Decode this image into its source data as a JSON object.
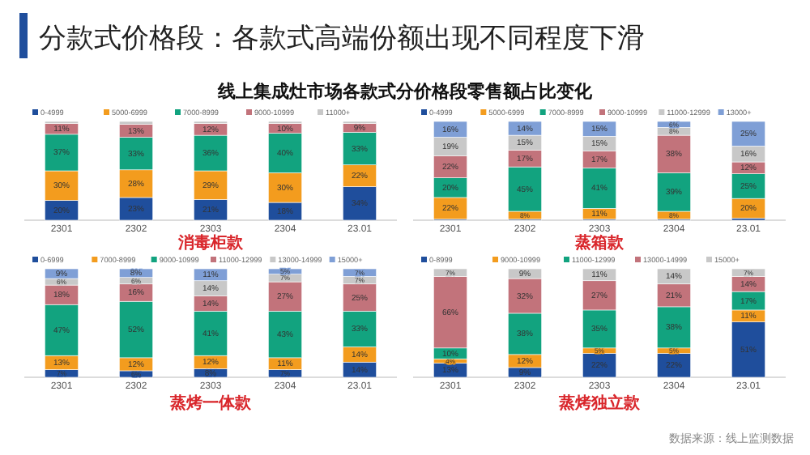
{
  "chart_data": [
    {
      "type": "bar",
      "stacked": true,
      "legend": "top",
      "title": "分款式价格段：各款式高端份额出现不同程度下滑",
      "subtitle": "线上集成灶市场各款式分价格段零售额占比变化",
      "xlabel": "消毒柜款",
      "categories": [
        "2301",
        "2302",
        "2303",
        "2304",
        "23.01"
      ],
      "series": [
        {
          "name": "0-4999",
          "color": "#1f4e9c",
          "values": [
            20,
            23,
            21,
            18,
            34
          ],
          "value_labels": [
            "20%",
            "23%",
            "21%",
            "18%",
            "34%"
          ]
        },
        {
          "name": "5000-6999",
          "color": "#f39c1e",
          "values": [
            30,
            28,
            29,
            30,
            22
          ],
          "value_labels": [
            "30%",
            "28%",
            "29%",
            "30%",
            "22%"
          ]
        },
        {
          "name": "7000-8999",
          "color": "#12a37f",
          "values": [
            37,
            33,
            36,
            40,
            33
          ],
          "value_labels": [
            "37%",
            "33%",
            "36%",
            "40%",
            "33%"
          ]
        },
        {
          "name": "9000-10999",
          "color": "#c2737b",
          "values": [
            11,
            13,
            12,
            10,
            9
          ],
          "value_labels": [
            "11%",
            "13%",
            "12%",
            "10%",
            "9%"
          ]
        },
        {
          "name": "11000+",
          "color": "#c8c8c8",
          "values": [
            2,
            3,
            2,
            2,
            2
          ],
          "value_labels": [
            null,
            null,
            null,
            null,
            null
          ]
        }
      ]
    },
    {
      "type": "bar",
      "stacked": true,
      "legend": "top",
      "xlabel": "蒸箱款",
      "categories": [
        "2301",
        "2302",
        "2303",
        "2304",
        "23.01"
      ],
      "series": [
        {
          "name": "0-4999",
          "color": "#1f4e9c",
          "values": [
            1,
            1,
            1,
            1,
            2
          ],
          "value_labels": [
            null,
            null,
            null,
            null,
            null
          ]
        },
        {
          "name": "5000-6999",
          "color": "#f39c1e",
          "values": [
            22,
            8,
            11,
            8,
            20
          ],
          "value_labels": [
            "22%",
            "8%",
            "11%",
            "8%",
            "20%"
          ]
        },
        {
          "name": "7000-8999",
          "color": "#12a37f",
          "values": [
            20,
            45,
            41,
            39,
            25
          ],
          "value_labels": [
            "20%",
            "45%",
            "41%",
            "39%",
            "25%"
          ]
        },
        {
          "name": "9000-10999",
          "color": "#c2737b",
          "values": [
            22,
            17,
            17,
            38,
            12
          ],
          "value_labels": [
            "22%",
            "17%",
            "17%",
            "38%",
            "12%"
          ]
        },
        {
          "name": "11000-12999",
          "color": "#c8c8c8",
          "values": [
            19,
            15,
            15,
            8,
            16
          ],
          "value_labels": [
            "19%",
            "15%",
            "15%",
            "8%",
            "16%"
          ]
        },
        {
          "name": "13000+",
          "color": "#7f9fd6",
          "values": [
            16,
            14,
            15,
            6,
            25
          ],
          "value_labels": [
            "16%",
            "14%",
            "15%",
            "6%",
            "25%"
          ]
        }
      ]
    },
    {
      "type": "bar",
      "stacked": true,
      "legend": "top",
      "xlabel": "蒸烤一体款",
      "categories": [
        "2301",
        "2302",
        "2303",
        "2304",
        "23.01"
      ],
      "series": [
        {
          "name": "0-6999",
          "color": "#1f4e9c",
          "values": [
            7,
            6,
            8,
            7,
            14
          ],
          "value_labels": [
            "7%",
            "6%",
            "8%",
            "7%",
            "14%"
          ]
        },
        {
          "name": "7000-8999",
          "color": "#f39c1e",
          "values": [
            13,
            12,
            12,
            11,
            14
          ],
          "value_labels": [
            "13%",
            "12%",
            "12%",
            "11%",
            "14%"
          ]
        },
        {
          "name": "9000-10999",
          "color": "#12a37f",
          "values": [
            47,
            52,
            41,
            43,
            33
          ],
          "value_labels": [
            "47%",
            "52%",
            "41%",
            "43%",
            "33%"
          ]
        },
        {
          "name": "11000-12999",
          "color": "#c2737b",
          "values": [
            18,
            16,
            14,
            27,
            25
          ],
          "value_labels": [
            "18%",
            "16%",
            "14%",
            "27%",
            "25%"
          ]
        },
        {
          "name": "13000-14999",
          "color": "#c8c8c8",
          "values": [
            6,
            6,
            14,
            7,
            7
          ],
          "value_labels": [
            "6%",
            "6%",
            "14%",
            "7%",
            "7%"
          ]
        },
        {
          "name": "15000+",
          "color": "#7f9fd6",
          "values": [
            9,
            8,
            11,
            5,
            7
          ],
          "value_labels": [
            "9%",
            "8%",
            "11%",
            "5%",
            "7%"
          ]
        }
      ]
    },
    {
      "type": "bar",
      "stacked": true,
      "legend": "top",
      "xlabel": "蒸烤独立款",
      "annotations": [
        "数据来源：线上监测数据"
      ],
      "categories": [
        "2301",
        "2302",
        "2303",
        "2304",
        "23.01"
      ],
      "series": [
        {
          "name": "0-8999",
          "color": "#1f4e9c",
          "values": [
            13,
            9,
            22,
            22,
            51
          ],
          "value_labels": [
            "13%",
            "9%",
            "22%",
            "22%",
            "51%"
          ]
        },
        {
          "name": "9000-10999",
          "color": "#f39c1e",
          "values": [
            4,
            12,
            5,
            5,
            11
          ],
          "value_labels": [
            "4%",
            "12%",
            "5%",
            "5%",
            "11%"
          ]
        },
        {
          "name": "11000-12999",
          "color": "#12a37f",
          "values": [
            10,
            38,
            35,
            38,
            17
          ],
          "value_labels": [
            "10%",
            "38%",
            "35%",
            "38%",
            "17%"
          ]
        },
        {
          "name": "13000-14999",
          "color": "#c2737b",
          "values": [
            66,
            32,
            27,
            21,
            14
          ],
          "value_labels": [
            "66%",
            "32%",
            "27%",
            "21%",
            "14%"
          ]
        },
        {
          "name": "15000+",
          "color": "#c8c8c8",
          "values": [
            7,
            9,
            11,
            14,
            7
          ],
          "value_labels": [
            "7%",
            "9%",
            "11%",
            "14%",
            "7%"
          ]
        }
      ]
    }
  ]
}
